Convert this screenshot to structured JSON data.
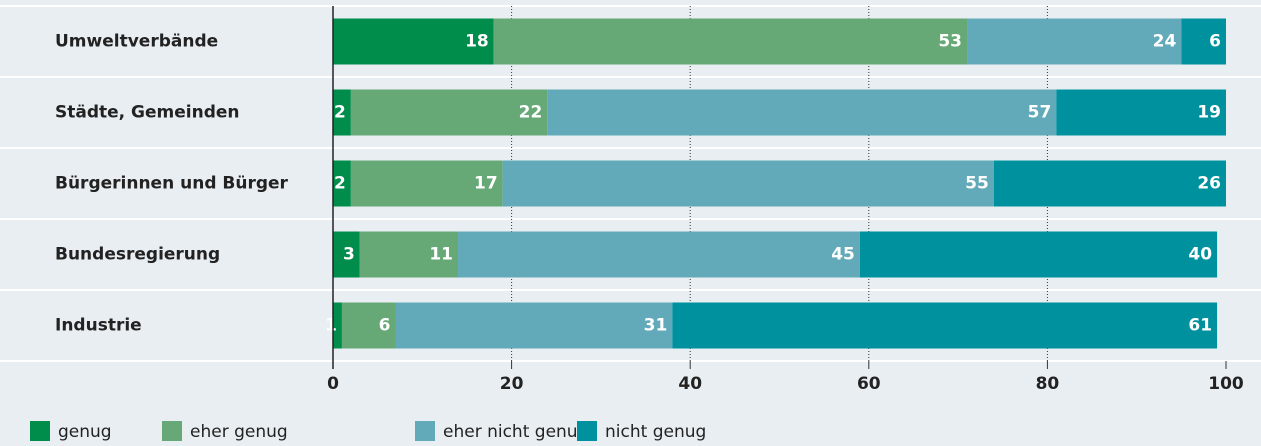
{
  "chart_data": {
    "type": "bar",
    "orientation": "horizontal",
    "stacked": true,
    "categories": [
      "Umweltverbände",
      "Städte, Gemeinden",
      "Bürgerinnen und Bürger",
      "Bundesregierung",
      "Industrie"
    ],
    "series": [
      {
        "name": "genug",
        "color": "#008c4a",
        "values": [
          18,
          2,
          2,
          3,
          1
        ]
      },
      {
        "name": "eher genug",
        "color": "#66a976",
        "values": [
          53,
          22,
          17,
          11,
          6
        ]
      },
      {
        "name": "eher nicht genug",
        "color": "#62aab9",
        "values": [
          24,
          57,
          55,
          45,
          31
        ]
      },
      {
        "name": "nicht genug",
        "color": "#00919f",
        "values": [
          6,
          19,
          26,
          40,
          61
        ]
      }
    ],
    "xlim": [
      0,
      100
    ],
    "xticks": [
      0,
      20,
      40,
      60,
      80,
      100
    ],
    "grid": true,
    "legend": "bottom"
  }
}
